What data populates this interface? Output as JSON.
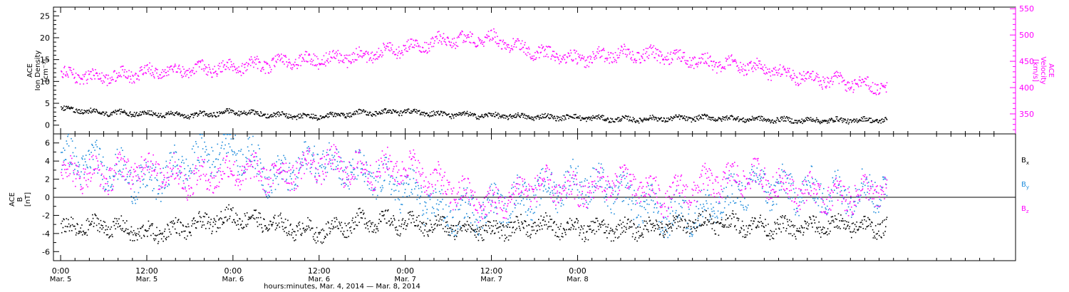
{
  "chart_data": [
    {
      "type": "scatter",
      "panel": "top",
      "ylabel_left": [
        "ACE",
        "Ion Density",
        "[cm⁻³]"
      ],
      "ylabel_right": [
        "ACE",
        "Velocity",
        "[km/s]"
      ],
      "ylim_left": [
        -2,
        27
      ],
      "ylim_right": [
        312,
        553
      ],
      "yticks_left": [
        "0",
        "5",
        "10",
        "15",
        "20",
        "25"
      ],
      "yticks_right": [
        "350",
        "400",
        "450",
        "500",
        "550"
      ],
      "grid": false,
      "series": [
        {
          "name": "Ion Density",
          "axis": "left",
          "color": "#000000",
          "x": [
            0,
            6,
            12,
            18,
            24,
            30,
            36,
            42,
            48,
            54,
            60,
            66,
            72,
            78,
            84,
            90,
            96,
            102,
            108,
            115
          ],
          "y": [
            3.8,
            3.0,
            2.8,
            2.3,
            3.2,
            2.4,
            2.0,
            3.0,
            3.2,
            2.5,
            2.3,
            2.0,
            1.9,
            1.4,
            1.6,
            1.8,
            1.5,
            1.2,
            1.2,
            1.3
          ]
        },
        {
          "name": "Velocity",
          "axis": "right",
          "color": "#ff00ff",
          "x": [
            0,
            6,
            12,
            18,
            24,
            30,
            36,
            42,
            48,
            54,
            60,
            66,
            72,
            78,
            84,
            90,
            96,
            102,
            108,
            115
          ],
          "y": [
            425,
            420,
            430,
            435,
            440,
            448,
            455,
            460,
            478,
            492,
            495,
            468,
            455,
            465,
            462,
            450,
            440,
            425,
            413,
            400
          ]
        }
      ]
    },
    {
      "type": "scatter",
      "panel": "bottom",
      "ylabel": [
        "ACE",
        "B",
        "[nT]"
      ],
      "ylim": [
        -7,
        7
      ],
      "yticks": [
        "-6",
        "-4",
        "-2",
        "0",
        "2",
        "4",
        "6"
      ],
      "grid": false,
      "zero_line": true,
      "series": [
        {
          "name": "B",
          "subscript": "x",
          "color": "#000000",
          "x": [
            0,
            6,
            12,
            18,
            24,
            30,
            36,
            42,
            48,
            54,
            60,
            66,
            72,
            78,
            84,
            90,
            96,
            102,
            108,
            115
          ],
          "y": [
            -3.5,
            -3.0,
            -4.0,
            -3.2,
            -2.0,
            -3.0,
            -3.8,
            -2.5,
            -2.8,
            -3.2,
            -3.6,
            -3.0,
            -3.4,
            -3.5,
            -3.2,
            -2.6,
            -3.0,
            -3.4,
            -3.0,
            -3.3
          ]
        },
        {
          "name": "B",
          "subscript": "y",
          "color": "#1e8cdc",
          "x": [
            0,
            6,
            12,
            18,
            24,
            30,
            36,
            42,
            48,
            54,
            60,
            66,
            72,
            78,
            84,
            90,
            96,
            102,
            108,
            115
          ],
          "y": [
            4.5,
            3.5,
            1.5,
            4.0,
            5.8,
            2.0,
            4.5,
            2.5,
            1.0,
            -2.0,
            -1.0,
            0.5,
            1.8,
            0.5,
            -2.0,
            -1.5,
            1.5,
            0.8,
            0.5,
            1.0
          ]
        },
        {
          "name": "B",
          "subscript": "z",
          "color": "#ff00ff",
          "x": [
            0,
            6,
            12,
            18,
            24,
            30,
            36,
            42,
            48,
            54,
            60,
            66,
            72,
            78,
            84,
            90,
            96,
            102,
            108,
            115
          ],
          "y": [
            3.0,
            2.5,
            3.5,
            2.0,
            3.0,
            2.5,
            3.8,
            3.0,
            3.5,
            1.0,
            -1.0,
            1.5,
            0.5,
            2.0,
            0.0,
            1.5,
            2.5,
            1.0,
            0.0,
            1.0
          ]
        }
      ]
    },
    {
      "type": "axis",
      "role": "shared-time-axis",
      "xlim": [
        -1,
        133
      ],
      "xticks": [
        {
          "hour": 0,
          "label": "0:00",
          "date": "Mar. 5"
        },
        {
          "hour": 12,
          "label": "12:00",
          "date": "Mar. 5"
        },
        {
          "hour": 24,
          "label": "0:00",
          "date": "Mar. 6"
        },
        {
          "hour": 36,
          "label": "12:00",
          "date": "Mar. 6"
        },
        {
          "hour": 48,
          "label": "0:00",
          "date": "Mar. 7"
        },
        {
          "hour": 60,
          "label": "12:00",
          "date": "Mar. 7"
        },
        {
          "hour": 72,
          "label": "0:00",
          "date": "Mar. 8"
        }
      ],
      "xlabel": "hours:minutes, Mar.  4, 2014 — Mar.  8, 2014"
    }
  ]
}
